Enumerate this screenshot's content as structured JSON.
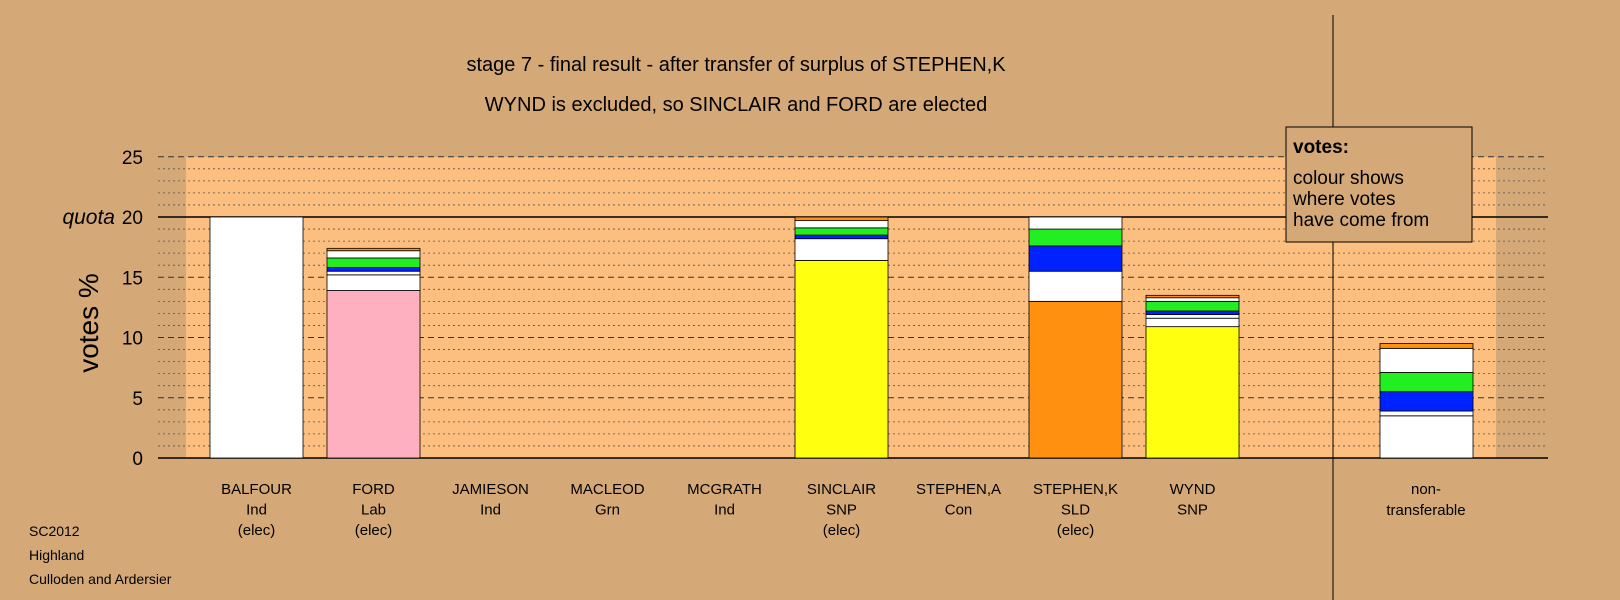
{
  "chart_data": {
    "type": "bar",
    "stacked": true,
    "title": "stage 7 - final result - after transfer of surplus of STEPHEN,K",
    "subtitle": "WYND is excluded, so SINCLAIR and FORD are elected",
    "ylabel": "votes %",
    "ylim": [
      0,
      25
    ],
    "yticks": [
      "0",
      "5",
      "10",
      "15",
      "20",
      "25"
    ],
    "quota": 20,
    "quota_label": "quota",
    "grid": true,
    "legend": {
      "title": "votes:",
      "lines": [
        "colour shows",
        "where votes",
        "have come from"
      ],
      "placement": "top-right"
    },
    "candidates": [
      {
        "name": "BALFOUR",
        "party": "Ind",
        "status": "(elec)",
        "segments": [
          {
            "color": "#ffffff",
            "value": 20.0
          }
        ]
      },
      {
        "name": "FORD",
        "party": "Lab",
        "status": "(elec)",
        "segments": [
          {
            "color": "#ffb0c0",
            "value": 13.9
          },
          {
            "color": "#ffffff",
            "value": 1.3
          },
          {
            "color": "#ffffff",
            "value": 0.3
          },
          {
            "color": "#0022ff",
            "value": 0.3
          },
          {
            "color": "#22ee22",
            "value": 0.8
          },
          {
            "color": "#ffffff",
            "value": 0.6
          },
          {
            "color": "#ff9010",
            "value": 0.2
          }
        ]
      },
      {
        "name": "JAMIESON",
        "party": "Ind",
        "status": "",
        "segments": []
      },
      {
        "name": "MACLEOD",
        "party": "Grn",
        "status": "",
        "segments": []
      },
      {
        "name": "MCGRATH",
        "party": "Ind",
        "status": "",
        "segments": []
      },
      {
        "name": "SINCLAIR",
        "party": "SNP",
        "status": "(elec)",
        "segments": [
          {
            "color": "#ffff10",
            "value": 16.4
          },
          {
            "color": "#ffffff",
            "value": 1.8
          },
          {
            "color": "#0022ff",
            "value": 0.3
          },
          {
            "color": "#22ee22",
            "value": 0.6
          },
          {
            "color": "#ffffff",
            "value": 0.6
          },
          {
            "color": "#ff9010",
            "value": 0.3
          }
        ]
      },
      {
        "name": "STEPHEN,A",
        "party": "Con",
        "status": "",
        "segments": []
      },
      {
        "name": "STEPHEN,K",
        "party": "SLD",
        "status": "(elec)",
        "segments": [
          {
            "color": "#ff9010",
            "value": 13.0
          },
          {
            "color": "#ffffff",
            "value": 2.5
          },
          {
            "color": "#0022ff",
            "value": 2.1
          },
          {
            "color": "#22ee22",
            "value": 1.4
          },
          {
            "color": "#ffffff",
            "value": 1.0
          }
        ]
      },
      {
        "name": "WYND",
        "party": "SNP",
        "status": "",
        "segments": [
          {
            "color": "#ffff10",
            "value": 10.9
          },
          {
            "color": "#ffffff",
            "value": 0.7
          },
          {
            "color": "#ffffff",
            "value": 0.3
          },
          {
            "color": "#0022ff",
            "value": 0.3
          },
          {
            "color": "#22ee22",
            "value": 0.8
          },
          {
            "color": "#ffffff",
            "value": 0.3
          },
          {
            "color": "#ff9010",
            "value": 0.2
          }
        ]
      }
    ],
    "nontransferable": {
      "label_line1": "non-",
      "label_line2": "transferable",
      "segments": [
        {
          "color": "#ffffff",
          "value": 3.5
        },
        {
          "color": "#ffffff",
          "value": 0.4
        },
        {
          "color": "#0022ff",
          "value": 1.6
        },
        {
          "color": "#22ee22",
          "value": 1.6
        },
        {
          "color": "#ffffff",
          "value": 2.0
        },
        {
          "color": "#ff9010",
          "value": 0.4
        }
      ]
    }
  },
  "footer": {
    "line1": "SC2012",
    "line2": "Highland",
    "line3": "Culloden and Ardersier"
  },
  "colors": {
    "background": "#d4a977",
    "plot_area": "#fdbf7f"
  }
}
